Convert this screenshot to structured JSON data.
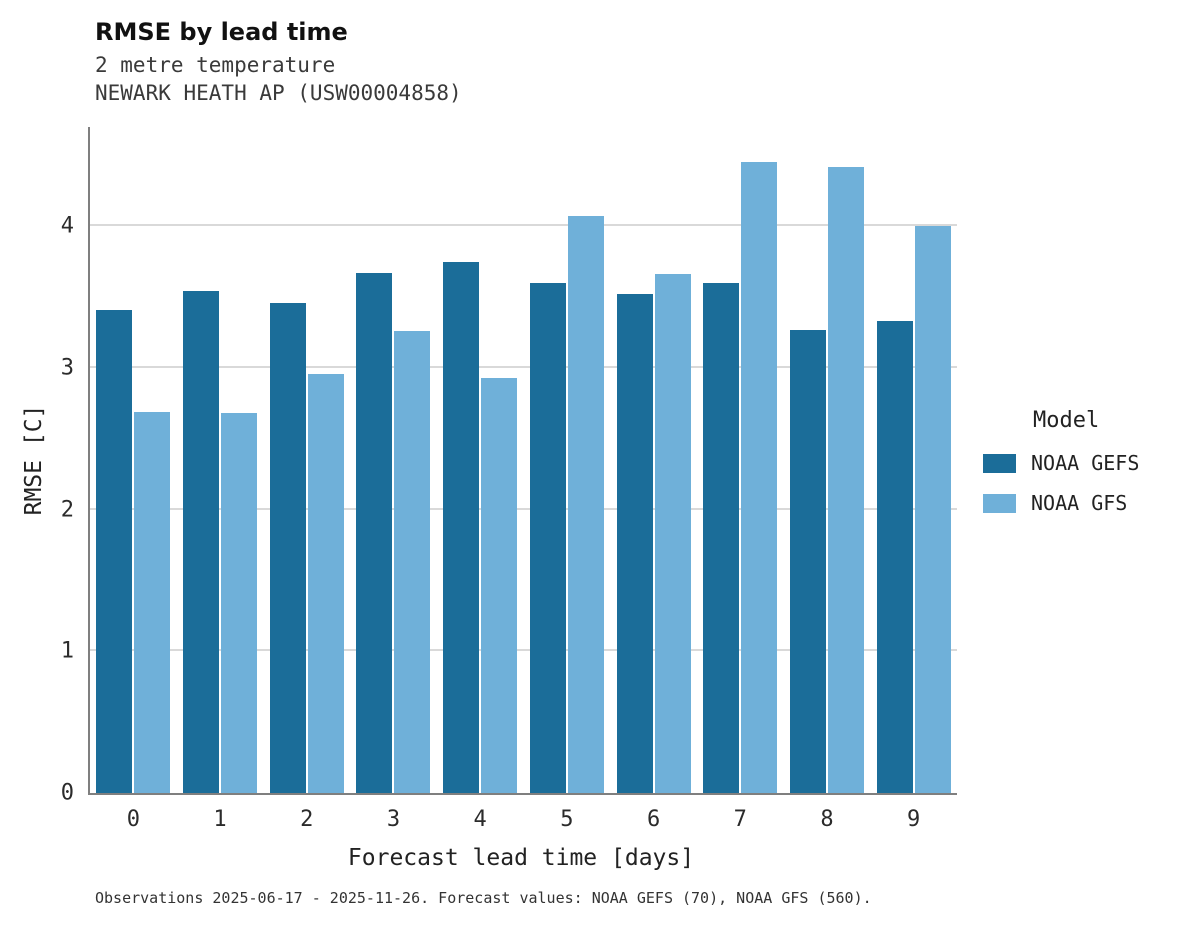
{
  "header": {
    "title": "RMSE by lead time",
    "subtitle1": "2 metre temperature",
    "subtitle2": "NEWARK HEATH AP (USW00004858)"
  },
  "footer": {
    "note": "Observations 2025-06-17 - 2025-11-26. Forecast values: NOAA GEFS (70), NOAA GFS (560)."
  },
  "legend": {
    "title": "Model"
  },
  "colors": {
    "gefs": "#1b6d99",
    "gfs": "#6fb0d9",
    "grid": "#d9d9d9",
    "spine": "#7f7f7f"
  },
  "chart_data": {
    "type": "bar",
    "title": "RMSE by lead time",
    "subtitle": [
      "2 metre temperature",
      "NEWARK HEATH AP (USW00004858)"
    ],
    "xlabel": "Forecast lead time [days]",
    "ylabel": "RMSE [C]",
    "categories": [
      "0",
      "1",
      "2",
      "3",
      "4",
      "5",
      "6",
      "7",
      "8",
      "9"
    ],
    "series": [
      {
        "name": "NOAA GEFS",
        "color": "#1b6d99",
        "values": [
          3.41,
          3.54,
          3.46,
          3.67,
          3.75,
          3.6,
          3.52,
          3.6,
          3.27,
          3.33
        ]
      },
      {
        "name": "NOAA GFS",
        "color": "#6fb0d9",
        "values": [
          2.69,
          2.68,
          2.96,
          3.26,
          2.93,
          4.07,
          3.66,
          4.45,
          4.42,
          4.0
        ]
      }
    ],
    "ylim": [
      0,
      4.7
    ],
    "yticks": [
      0,
      1,
      2,
      3,
      4
    ],
    "grid": true,
    "legend_title": "Model",
    "legend_position": "right"
  }
}
